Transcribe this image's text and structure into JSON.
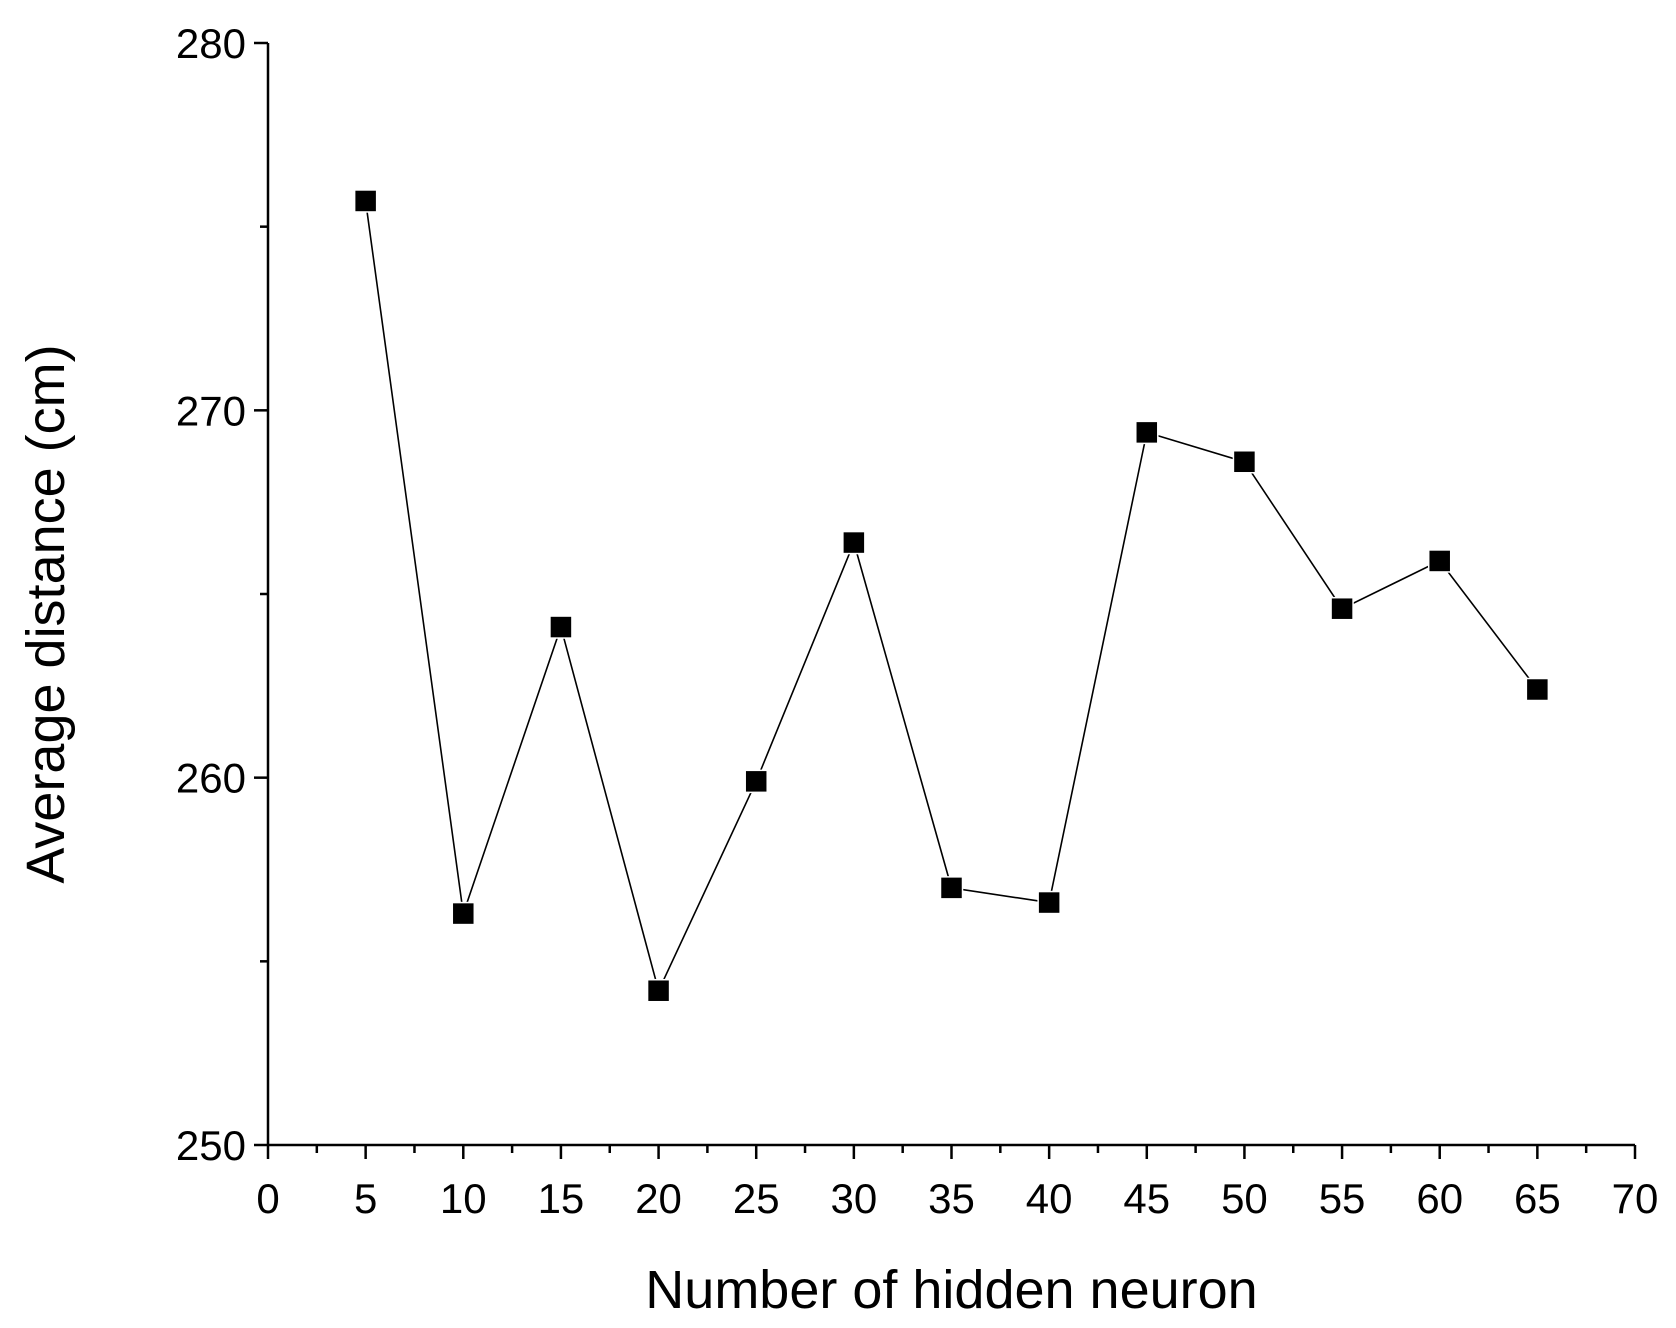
{
  "chart_data": {
    "type": "scatter",
    "xlabel": "Number of hidden neuron",
    "ylabel": "Average distance (cm)",
    "xlim": [
      0,
      70
    ],
    "ylim": [
      250,
      280
    ],
    "x_ticks": [
      0,
      5,
      10,
      15,
      20,
      25,
      30,
      35,
      40,
      45,
      50,
      55,
      60,
      65,
      70
    ],
    "x_tick_labels": [
      "0",
      "5",
      "10",
      "15",
      "20",
      "25",
      "30",
      "35",
      "40",
      "45",
      "50",
      "55",
      "60",
      "65",
      "70"
    ],
    "x_minor_step": 2.5,
    "y_ticks": [
      250,
      260,
      270,
      280
    ],
    "y_tick_labels": [
      "250",
      "260",
      "270",
      "280"
    ],
    "y_minor_step": 5,
    "grid": false,
    "marker": "square",
    "connected": true,
    "x": [
      5,
      10,
      15,
      20,
      25,
      30,
      35,
      40,
      45,
      50,
      55,
      60,
      65
    ],
    "y": [
      275.7,
      256.3,
      264.1,
      254.2,
      259.9,
      266.4,
      257.0,
      256.6,
      269.4,
      268.6,
      264.6,
      265.9,
      262.4
    ]
  }
}
